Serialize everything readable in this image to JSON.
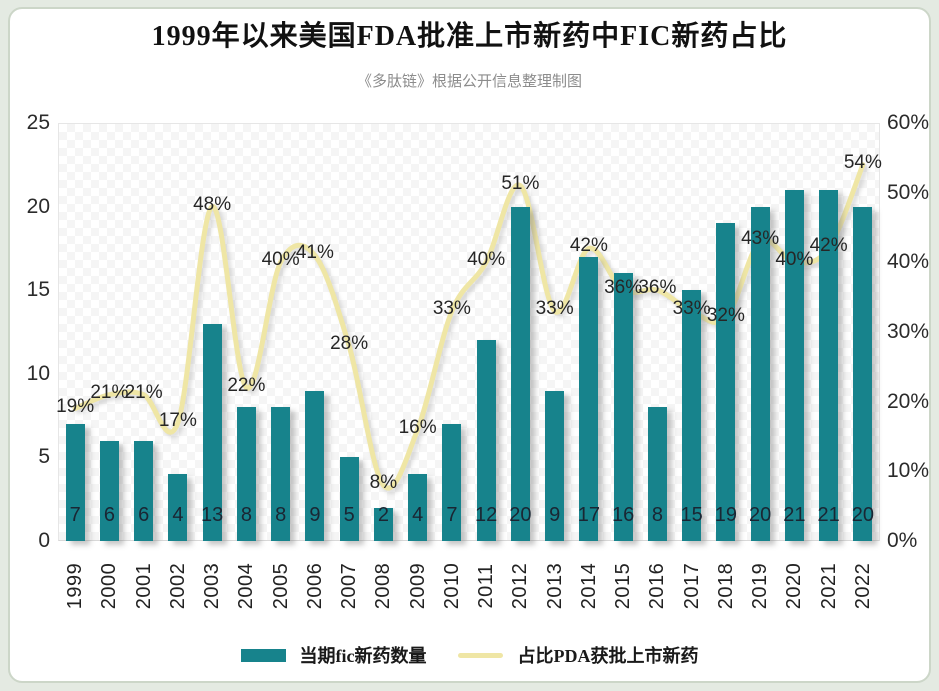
{
  "title": "1999年以来美国FDA批准上市新药中FIC新药占比",
  "subtitle": "《多肽链》根据公开信息整理制图",
  "colors": {
    "bar": "#17838c",
    "line": "#efe6a5",
    "frame_background": "#e4eae2",
    "card_background": "#ffffff"
  },
  "chart_data": {
    "type": "bar+line",
    "title": "1999年以来美国FDA批准上市新药中FIC新药占比",
    "subtitle": "《多肽链》根据公开信息整理制图",
    "categories": [
      "1999",
      "2000",
      "2001",
      "2002",
      "2003",
      "2004",
      "2005",
      "2006",
      "2007",
      "2008",
      "2009",
      "2010",
      "2011",
      "2012",
      "2013",
      "2014",
      "2015",
      "2016",
      "2017",
      "2018",
      "2019",
      "2020",
      "2021",
      "2022"
    ],
    "series": [
      {
        "name": "当期fic新药数量",
        "type": "bar",
        "axis": "left",
        "values": [
          7,
          6,
          6,
          4,
          13,
          8,
          8,
          9,
          5,
          2,
          4,
          7,
          12,
          20,
          9,
          17,
          16,
          8,
          15,
          19,
          20,
          21,
          21,
          20
        ]
      },
      {
        "name": "占比PDA获批上市新药",
        "type": "line",
        "axis": "right",
        "unit": "%",
        "values": [
          19,
          21,
          21,
          17,
          48,
          22,
          40,
          41,
          28,
          8,
          16,
          33,
          40,
          51,
          33,
          42,
          36,
          36,
          33,
          32,
          43,
          40,
          42,
          54
        ]
      }
    ],
    "left_axis": {
      "min": 0,
      "max": 25,
      "ticks": [
        25,
        20,
        15,
        10,
        5,
        0
      ]
    },
    "right_axis": {
      "min": 0,
      "max": 60,
      "ticks": [
        "60%",
        "50%",
        "40%",
        "30%",
        "20%",
        "10%",
        "0%"
      ]
    },
    "grid": false,
    "legend_position": "bottom",
    "data_labels": {
      "bar": "inside-base",
      "line": "centered-on-point"
    }
  }
}
